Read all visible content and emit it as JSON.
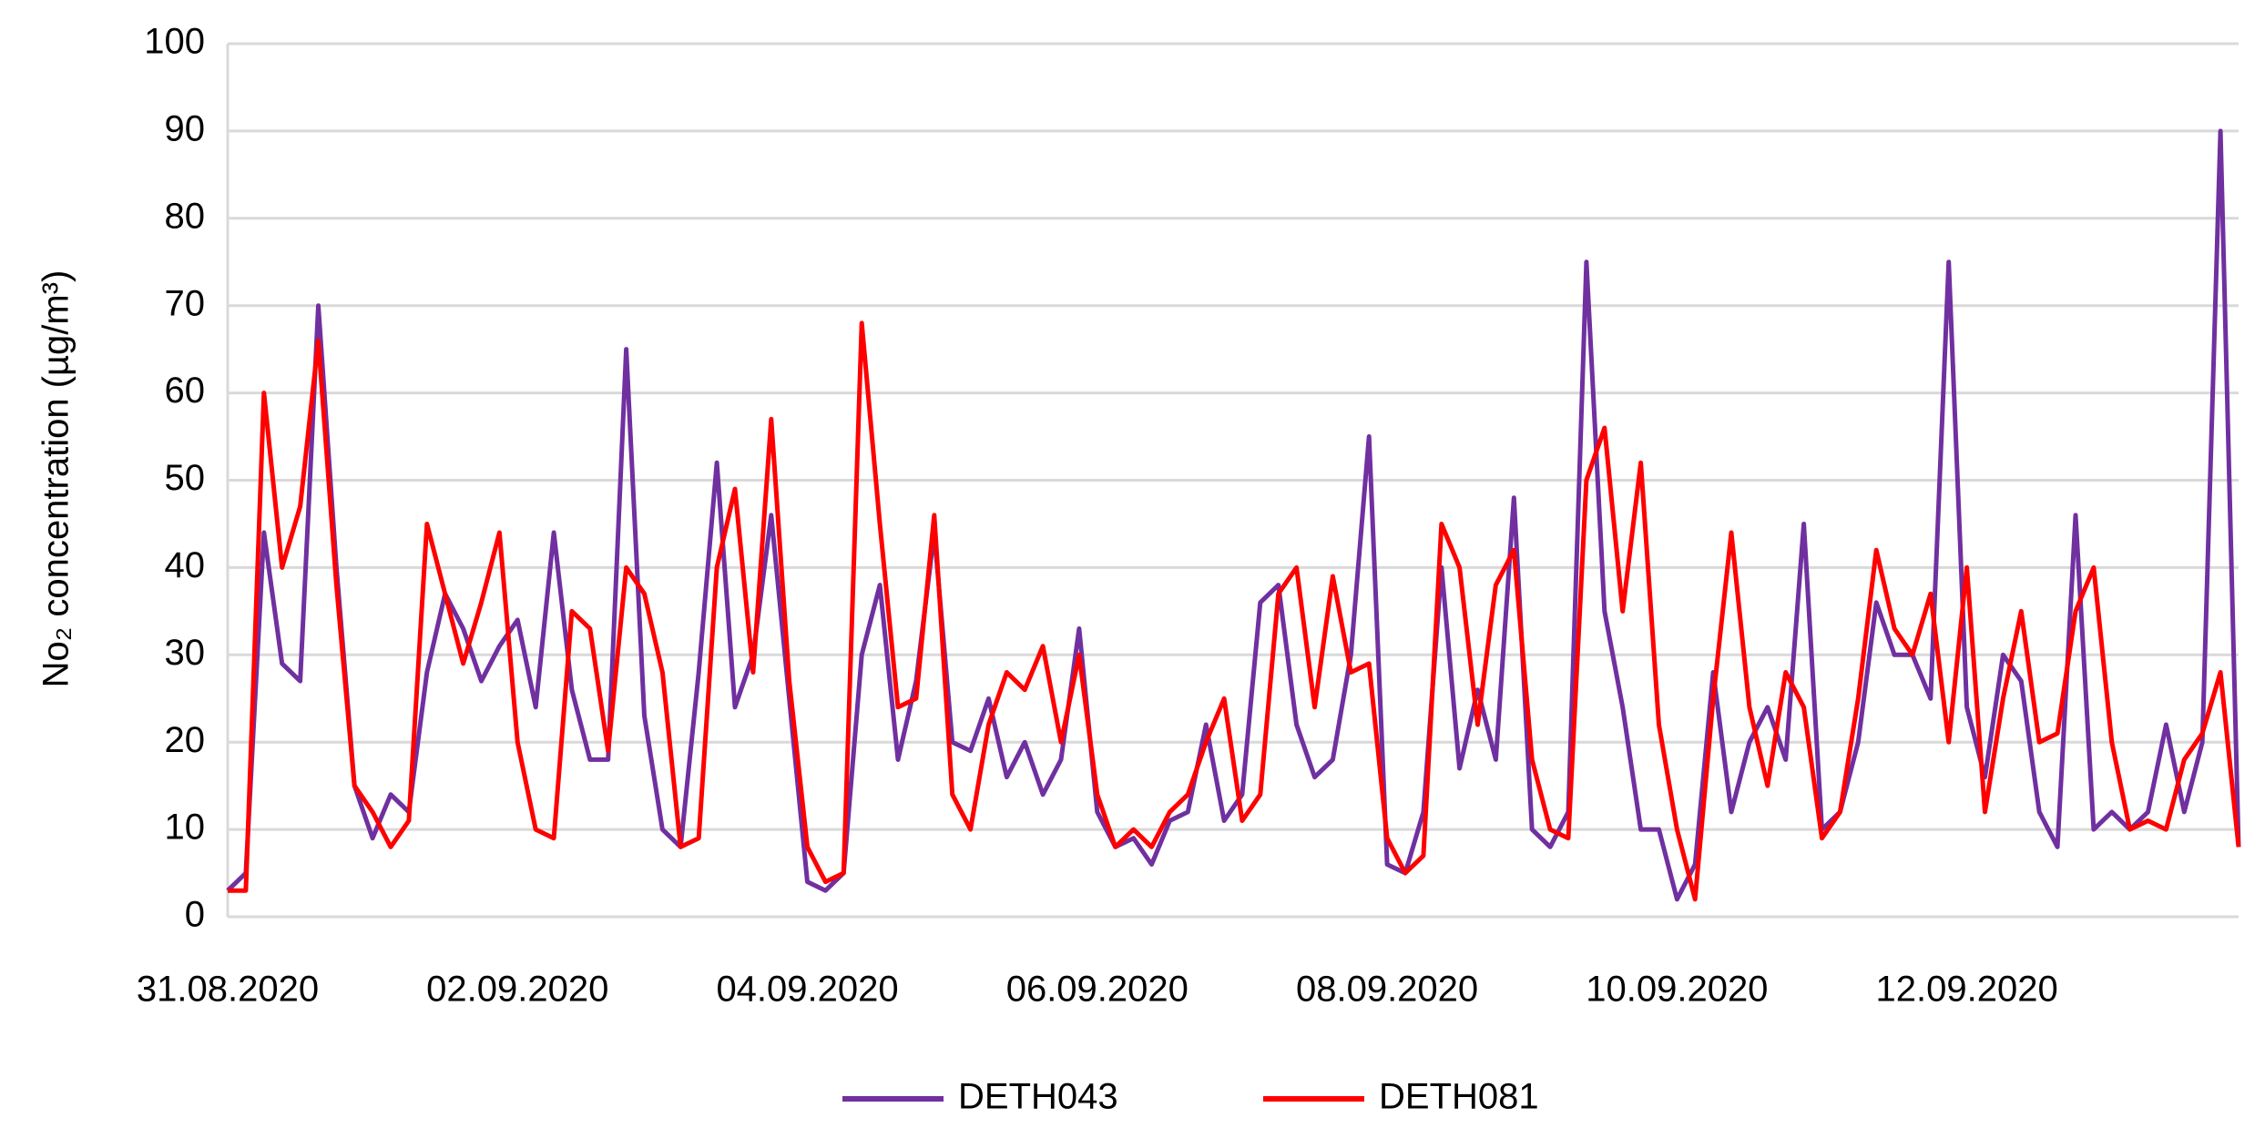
{
  "chart_data": {
    "type": "line",
    "y_label": "No₂ concentration (µg/m³)",
    "categories": [
      "31.08.2020",
      null,
      null,
      null,
      null,
      null,
      null,
      null,
      null,
      null,
      null,
      null,
      null,
      null,
      null,
      null,
      "02.09.2020",
      null,
      null,
      null,
      null,
      null,
      null,
      null,
      null,
      null,
      null,
      null,
      null,
      null,
      null,
      null,
      "04.09.2020",
      null,
      null,
      null,
      null,
      null,
      null,
      null,
      null,
      null,
      null,
      null,
      null,
      null,
      null,
      null,
      "06.09.2020",
      null,
      null,
      null,
      null,
      null,
      null,
      null,
      null,
      null,
      null,
      null,
      null,
      null,
      null,
      null,
      "08.09.2020",
      null,
      null,
      null,
      null,
      null,
      null,
      null,
      null,
      null,
      null,
      null,
      null,
      null,
      null,
      null,
      "10.09.2020",
      null,
      null,
      null,
      null,
      null,
      null,
      null,
      null,
      null,
      null,
      null,
      null,
      null,
      null,
      null,
      "12.09.2020",
      null,
      null,
      null,
      null,
      null,
      null,
      null,
      null,
      null,
      null,
      null,
      null,
      null,
      null,
      null
    ],
    "series": [
      {
        "name": "DETH043",
        "color": "#7030a0",
        "values": [
          3,
          5,
          44,
          29,
          27,
          70,
          40,
          15,
          9,
          14,
          12,
          28,
          37,
          33,
          27,
          31,
          34,
          24,
          44,
          26,
          18,
          18,
          65,
          23,
          10,
          8,
          28,
          52,
          24,
          30,
          46,
          25,
          4,
          3,
          5,
          30,
          38,
          18,
          27,
          44,
          20,
          19,
          25,
          16,
          20,
          14,
          18,
          33,
          12,
          8,
          9,
          6,
          11,
          12,
          22,
          11,
          14,
          36,
          38,
          22,
          16,
          18,
          30,
          55,
          6,
          5,
          12,
          40,
          17,
          26,
          18,
          48,
          10,
          8,
          12,
          75,
          35,
          24,
          10,
          10,
          2,
          6,
          28,
          12,
          20,
          24,
          18,
          45,
          10,
          12,
          20,
          36,
          30,
          30,
          25,
          75,
          24,
          16,
          30,
          27,
          12,
          8,
          46,
          10,
          12,
          10,
          12,
          22,
          12,
          20,
          90,
          8
        ]
      },
      {
        "name": "DETH081",
        "color": "#ff0000",
        "values": [
          3,
          3,
          60,
          40,
          47,
          66,
          38,
          15,
          12,
          8,
          11,
          45,
          37,
          29,
          36,
          44,
          20,
          10,
          9,
          35,
          33,
          19,
          40,
          37,
          28,
          8,
          9,
          40,
          49,
          28,
          57,
          27,
          8,
          4,
          5,
          68,
          45,
          24,
          25,
          46,
          14,
          10,
          22,
          28,
          26,
          31,
          20,
          30,
          14,
          8,
          10,
          8,
          12,
          14,
          20,
          25,
          11,
          14,
          37,
          40,
          24,
          39,
          28,
          29,
          9,
          5,
          7,
          45,
          40,
          22,
          38,
          42,
          18,
          10,
          9,
          50,
          56,
          35,
          52,
          22,
          10,
          2,
          25,
          44,
          24,
          15,
          28,
          24,
          9,
          12,
          25,
          42,
          33,
          30,
          37,
          20,
          40,
          12,
          25,
          35,
          20,
          21,
          35,
          40,
          20,
          10,
          11,
          10,
          18,
          21,
          28,
          8
        ]
      }
    ],
    "ylim": [
      0,
      100
    ],
    "yticks": [
      0,
      10,
      20,
      30,
      40,
      50,
      60,
      70,
      80,
      90,
      100
    ],
    "grid": true,
    "legend": "bottom"
  }
}
